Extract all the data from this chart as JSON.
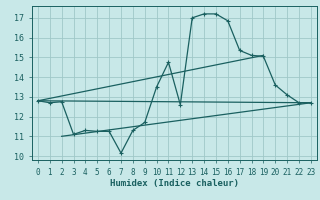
{
  "xlabel": "Humidex (Indice chaleur)",
  "bg_color": "#c8e8e8",
  "plot_bg_color": "#c8e8e8",
  "grid_color": "#a0c8c8",
  "line_color": "#1a6060",
  "xlim": [
    -0.5,
    23.5
  ],
  "ylim": [
    9.8,
    17.6
  ],
  "yticks": [
    10,
    11,
    12,
    13,
    14,
    15,
    16,
    17
  ],
  "xticks": [
    0,
    1,
    2,
    3,
    4,
    5,
    6,
    7,
    8,
    9,
    10,
    11,
    12,
    13,
    14,
    15,
    16,
    17,
    18,
    19,
    20,
    21,
    22,
    23
  ],
  "line1_x": [
    0,
    1,
    2,
    3,
    4,
    5,
    6,
    7,
    8,
    9,
    10,
    11,
    12,
    13,
    14,
    15,
    16,
    17,
    18,
    19,
    20,
    21,
    22,
    23
  ],
  "line1_y": [
    12.8,
    12.7,
    12.75,
    11.1,
    11.3,
    11.25,
    11.25,
    10.15,
    11.3,
    11.7,
    13.5,
    14.75,
    12.6,
    17.0,
    17.2,
    17.2,
    16.85,
    15.35,
    15.1,
    15.05,
    13.6,
    13.1,
    12.7,
    12.7
  ],
  "line2_x": [
    0,
    23
  ],
  "line2_y": [
    12.8,
    12.7
  ],
  "line3_x": [
    0,
    19
  ],
  "line3_y": [
    12.8,
    15.1
  ],
  "line4_x": [
    2,
    23
  ],
  "line4_y": [
    11.0,
    12.7
  ]
}
